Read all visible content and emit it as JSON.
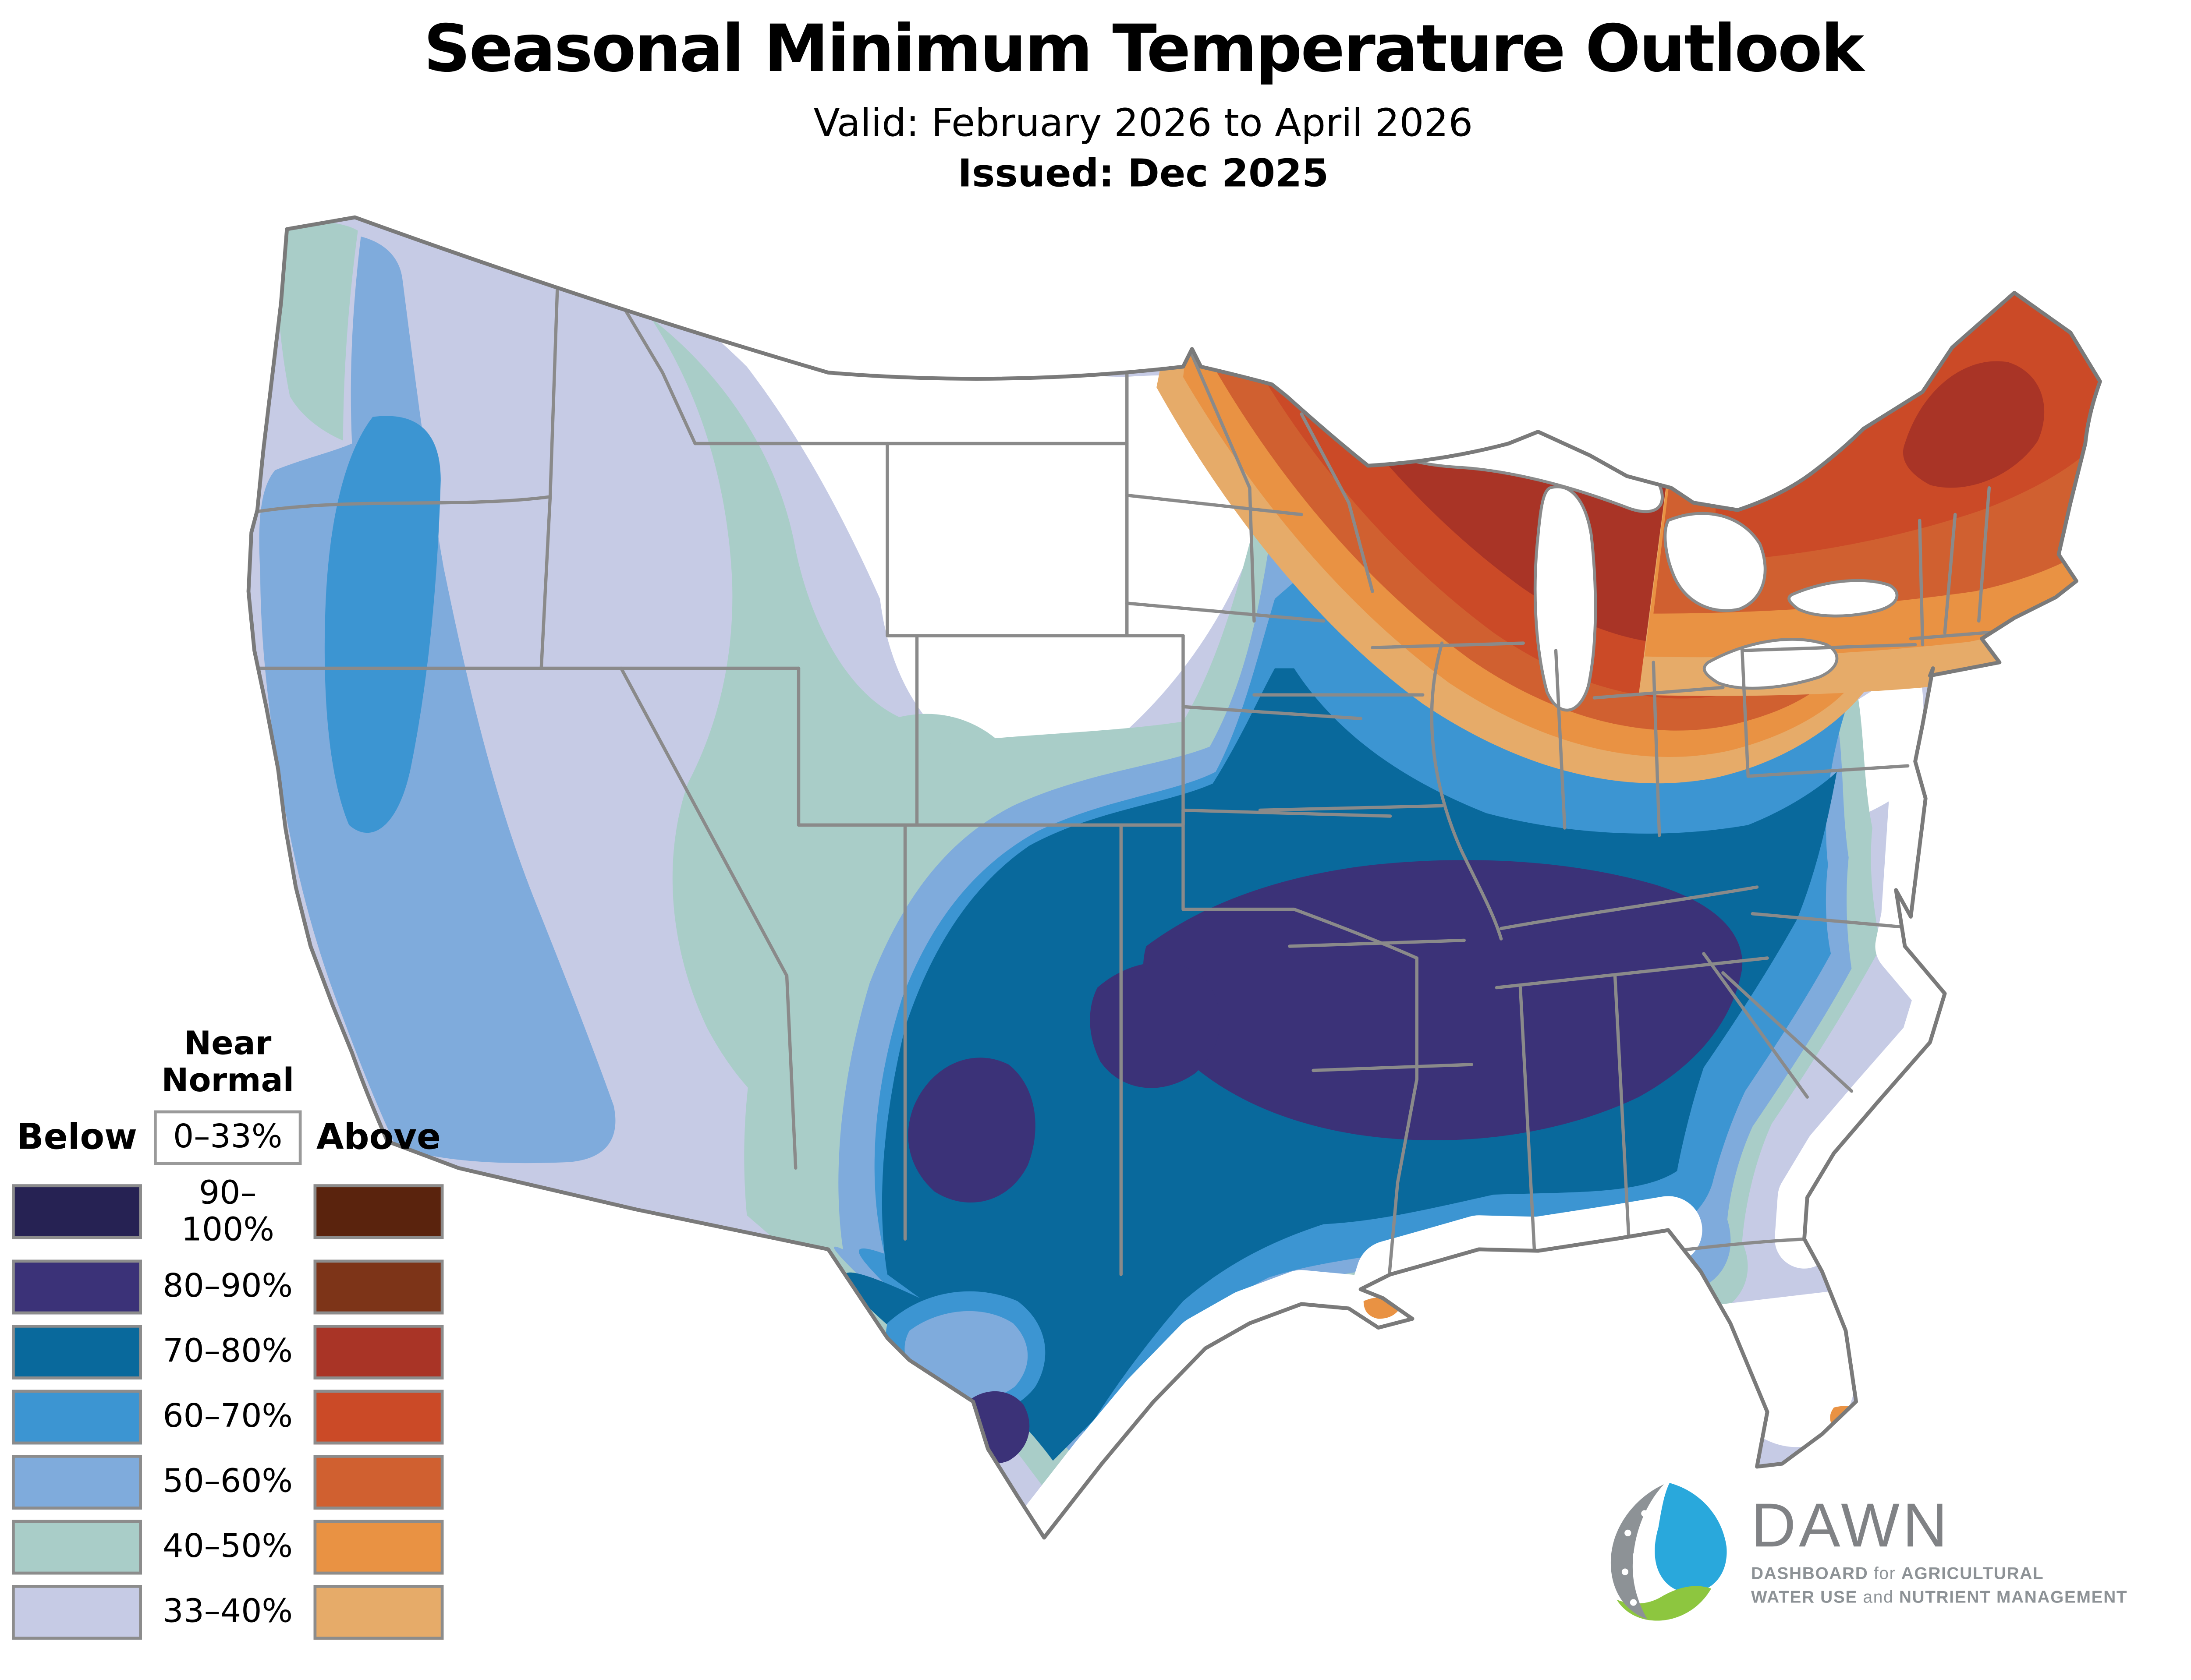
{
  "header": {
    "title": "Seasonal Minimum Temperature Outlook",
    "valid_line": "Valid: February 2026 to April 2026",
    "issued_line": "Issued: Dec 2025"
  },
  "legend": {
    "near_normal_label": "Near Normal",
    "near_normal_range": "0–33%",
    "below_label": "Below",
    "above_label": "Above",
    "rows": [
      {
        "range": "90–100%",
        "below_color": "#262253",
        "above_color": "#5a230d"
      },
      {
        "range": "80–90%",
        "below_color": "#3b3278",
        "above_color": "#7d3418"
      },
      {
        "range": "70–80%",
        "below_color": "#09699c",
        "above_color": "#a93426"
      },
      {
        "range": "60–70%",
        "below_color": "#3c95d2",
        "above_color": "#cb4a27"
      },
      {
        "range": "50–60%",
        "below_color": "#7fabdc",
        "above_color": "#d06030"
      },
      {
        "range": "40–50%",
        "below_color": "#a9cdc8",
        "above_color": "#e99243"
      },
      {
        "range": "33–40%",
        "below_color": "#c6cbe5",
        "above_color": "#e6ab69"
      }
    ]
  },
  "map": {
    "background_color": "#ffffff",
    "state_border_color": "#8a8a8a",
    "coast_border_color": "#7a7a7a",
    "regions": [
      {
        "area": "Mid-South (Arkansas, Tennessee, northern Mississippi/Alabama/Georgia, northeast Texas)",
        "category": "below",
        "probability": "80–90%"
      },
      {
        "area": "Southwest New Mexico bootheel and Rio Grande near Del Rio TX",
        "category": "below",
        "probability": "80–90%"
      },
      {
        "area": "Southern Plains to Ohio Valley and interior Southeast",
        "category": "below",
        "probability": "70–80%"
      },
      {
        "area": "West Coast core over Oregon and far northern California",
        "category": "below",
        "probability": "60–70%"
      },
      {
        "area": "Most of the West, central Plains and Gulf interior",
        "category": "below",
        "probability": "40–70% banded"
      },
      {
        "area": "Montana/Wyoming, central Minnesota to Ohio/Pennsylvania/New Jersey swath, Gulf and south Atlantic coastal fringe, south Florida",
        "category": "near-normal",
        "probability": "0–33%"
      },
      {
        "area": "Far northern Minnesota, northern Wisconsin and upper Michigan",
        "category": "above",
        "probability": "70–80% core with 33–70% bands southward"
      },
      {
        "area": "Northern New England core (western Maine / northern New Hampshire)",
        "category": "above",
        "probability": "70–80% core, 33–70% bands to Long Island"
      },
      {
        "area": "Small slivers at Louisiana delta and southeast Florida coast",
        "category": "above",
        "probability": "40–50%"
      }
    ]
  },
  "logo": {
    "name": "DAWN",
    "tagline_part1_strong": "DASHBOARD",
    "tagline_part1_light": " for ",
    "tagline_part1_strong2": "AGRICULTURAL",
    "tagline_part2_strong": "WATER USE",
    "tagline_part2_light": " and ",
    "tagline_part2_strong2": "NUTRIENT MANAGEMENT",
    "water_color": "#29a8dc",
    "leaf_color": "#8dc63f",
    "gray_color": "#8d9296"
  }
}
